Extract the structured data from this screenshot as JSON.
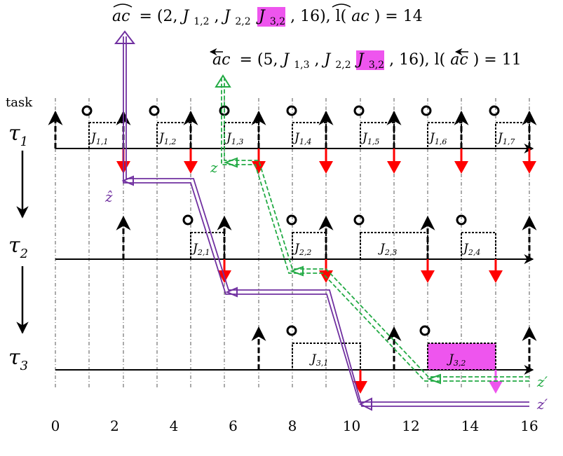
{
  "header": {
    "line1": {
      "lhs": "ac",
      "eq_open": "= (2, ",
      "j_a": "J",
      "j_a_sub": "1,2",
      "sep1": ", ",
      "j_b": "J",
      "j_b_sub": "2,2",
      "sep2": ", ",
      "j_c": "J",
      "j_c_sub": "3,2",
      "tail": ", 16), l(",
      "lhs2": "ac",
      "end": ") = 14"
    },
    "line2": {
      "lhs": "ac",
      "eq_open": "= (5, ",
      "j_a": "J",
      "j_a_sub": "1,3",
      "sep1": ", ",
      "j_b": "J",
      "j_b_sub": "2,2",
      "sep2": ", ",
      "j_c": "J",
      "j_c_sub": "3,2",
      "tail": ", 16), l(",
      "lhs2": "ac",
      "end": ") = 11"
    }
  },
  "axis": {
    "task_label": "task",
    "ticks": [
      "0",
      "2",
      "4",
      "6",
      "8",
      "10",
      "12",
      "14",
      "16"
    ]
  },
  "tasks": [
    {
      "name": "τ",
      "sub": "1"
    },
    {
      "name": "τ",
      "sub": "2"
    },
    {
      "name": "τ",
      "sub": "3"
    }
  ],
  "jobs": {
    "t1": [
      {
        "label": "J",
        "sub": "1,1"
      },
      {
        "label": "J",
        "sub": "1,2"
      },
      {
        "label": "J",
        "sub": "1,3"
      },
      {
        "label": "J",
        "sub": "1,4"
      },
      {
        "label": "J",
        "sub": "1,5"
      },
      {
        "label": "J",
        "sub": "1,6"
      },
      {
        "label": "J",
        "sub": "1,7"
      }
    ],
    "t2": [
      {
        "label": "J",
        "sub": "2,1"
      },
      {
        "label": "J",
        "sub": "2,2"
      },
      {
        "label": "J",
        "sub": "2,3"
      },
      {
        "label": "J",
        "sub": "2,4"
      }
    ],
    "t3": [
      {
        "label": "J",
        "sub": "3,1"
      },
      {
        "label": "J",
        "sub": "3,2"
      }
    ]
  },
  "path_labels": {
    "z_green": "z",
    "z_hat": "ẑ",
    "z_prime_green": "z′",
    "z_prime_purple": "z′"
  },
  "colors": {
    "purple": "#7030a0",
    "green": "#22aa44",
    "red": "#ff0000",
    "highlight": "#ee55ee"
  }
}
